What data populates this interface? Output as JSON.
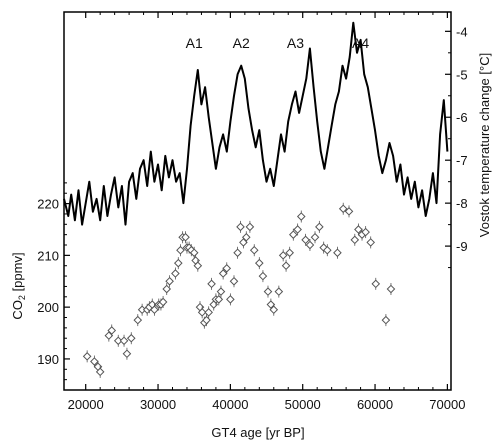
{
  "chart_data": {
    "type": "line",
    "xlabel": "GT4 age [yr BP]",
    "xlim": [
      17000,
      70500
    ],
    "xticks": [
      20000,
      30000,
      40000,
      50000,
      60000,
      70000
    ],
    "xtick_labels": [
      "20000",
      "30000",
      "40000",
      "50000",
      "60000",
      "70000"
    ],
    "y_left": {
      "label": "CO2 [ppmv]",
      "label_main": "CO",
      "label_sub": "2",
      "label_unit": " [ppmv]",
      "ylim": [
        184,
        257
      ],
      "ticks": [
        190,
        200,
        210,
        220
      ],
      "tick_labels": [
        "190",
        "200",
        "210",
        "220"
      ]
    },
    "y_right": {
      "label": "Vostok temperature change [°C]",
      "ylim": [
        -12.35,
        -3.55
      ],
      "ticks": [
        -4,
        -5,
        -6,
        -7,
        -8,
        -9
      ],
      "tick_labels": [
        "-4",
        "-5",
        "-6",
        "-7",
        "-8",
        "-9"
      ]
    },
    "annotations": [
      {
        "text": "A1",
        "x": 35000
      },
      {
        "text": "A2",
        "x": 41500
      },
      {
        "text": "A3",
        "x": 49000
      },
      {
        "text": "A4",
        "x": 58000
      }
    ],
    "grid": false,
    "series": [
      {
        "axis": "right",
        "style": "line",
        "color": "#000000",
        "x": [
          17000,
          17600,
          18000,
          18500,
          19000,
          19500,
          20000,
          20500,
          21000,
          21500,
          22000,
          22500,
          23000,
          23500,
          24000,
          24500,
          25000,
          25500,
          26000,
          26500,
          27000,
          27500,
          28000,
          28500,
          29000,
          29500,
          30000,
          30500,
          31000,
          31500,
          32000,
          32500,
          33000,
          33500,
          34000,
          34500,
          35000,
          35500,
          36000,
          36500,
          37000,
          37500,
          38000,
          38500,
          39000,
          39500,
          40000,
          40500,
          41000,
          41500,
          42000,
          42500,
          43000,
          43500,
          44000,
          44500,
          45000,
          45500,
          46000,
          46500,
          47000,
          47500,
          48000,
          48500,
          49000,
          49500,
          50000,
          50500,
          51000,
          51500,
          52000,
          52500,
          53000,
          53500,
          54000,
          54500,
          55000,
          55500,
          56000,
          56500,
          57000,
          57500,
          58000,
          58500,
          59000,
          59500,
          60000,
          60500,
          61000,
          61500,
          62000,
          62500,
          63000,
          63500,
          64000,
          64500,
          65000,
          65500,
          66000,
          66500,
          67000,
          67500,
          68000,
          68500,
          69000,
          69500,
          70000
        ],
        "y": [
          -7.9,
          -8.3,
          -7.8,
          -8.4,
          -7.7,
          -8.5,
          -8.0,
          -7.5,
          -8.2,
          -7.9,
          -8.4,
          -7.6,
          -8.3,
          -7.8,
          -7.4,
          -8.1,
          -7.6,
          -8.5,
          -7.5,
          -7.3,
          -7.9,
          -7.2,
          -7.0,
          -7.6,
          -6.8,
          -7.5,
          -7.1,
          -7.7,
          -6.9,
          -7.4,
          -7.0,
          -7.5,
          -7.3,
          -8.0,
          -7.2,
          -6.2,
          -5.5,
          -4.9,
          -5.7,
          -5.3,
          -6.0,
          -6.6,
          -7.2,
          -6.7,
          -6.4,
          -6.8,
          -6.1,
          -5.5,
          -5.0,
          -4.8,
          -5.1,
          -5.8,
          -6.3,
          -6.7,
          -6.3,
          -7.0,
          -7.5,
          -7.2,
          -7.6,
          -7.0,
          -6.4,
          -6.8,
          -6.1,
          -5.7,
          -5.4,
          -5.9,
          -5.5,
          -5.1,
          -4.4,
          -5.3,
          -6.1,
          -6.8,
          -7.2,
          -6.7,
          -6.2,
          -5.7,
          -5.4,
          -4.8,
          -5.1,
          -4.6,
          -3.8,
          -4.5,
          -4.2,
          -5.0,
          -5.3,
          -5.8,
          -6.3,
          -6.9,
          -7.3,
          -7.0,
          -6.6,
          -6.9,
          -7.5,
          -7.1,
          -7.8,
          -7.4,
          -7.9,
          -7.5,
          -8.1,
          -7.7,
          -8.3,
          -7.9,
          -7.3,
          -8.0,
          -6.4,
          -5.6,
          -6.8
        ]
      },
      {
        "axis": "left",
        "style": "markers",
        "marker": "diamond",
        "color": "#555555",
        "x": [
          20200,
          21200,
          21700,
          22000,
          23200,
          23600,
          24500,
          25300,
          25700,
          26300,
          27200,
          27800,
          28500,
          28800,
          29200,
          29500,
          30100,
          30400,
          30700,
          31200,
          31600,
          32400,
          32800,
          33100,
          33400,
          33800,
          34000,
          34300,
          34600,
          35000,
          35200,
          35500,
          35800,
          36100,
          36400,
          36700,
          37000,
          37400,
          37700,
          38000,
          38400,
          38700,
          39000,
          39500,
          40000,
          40500,
          41000,
          41400,
          41800,
          42200,
          42700,
          43300,
          44000,
          44500,
          45200,
          45600,
          46000,
          46700,
          47300,
          47700,
          48200,
          48700,
          49300,
          49800,
          50400,
          51000,
          51700,
          52300,
          52900,
          53400,
          54800,
          55600,
          56400,
          57200,
          57700,
          58200,
          58700,
          59400,
          60100,
          61500,
          62200
        ],
        "y": [
          190.5,
          189.5,
          188.5,
          187.5,
          194.5,
          195.5,
          193.5,
          193.5,
          191.0,
          194.0,
          197.5,
          199.5,
          199.5,
          200.0,
          200.5,
          199.5,
          200.5,
          200.5,
          201.0,
          203.5,
          205.0,
          206.5,
          208.5,
          211.0,
          213.5,
          213.5,
          211.5,
          211.5,
          211.0,
          210.5,
          209.0,
          208.0,
          200.0,
          199.0,
          197.0,
          197.5,
          199.0,
          204.5,
          200.5,
          201.5,
          201.5,
          203.0,
          206.5,
          207.5,
          201.5,
          205.0,
          210.5,
          215.5,
          212.5,
          213.5,
          215.5,
          211.0,
          208.5,
          206.0,
          203.0,
          200.5,
          199.5,
          203.0,
          210.0,
          208.0,
          210.5,
          214.0,
          215.0,
          217.5,
          213.0,
          212.0,
          213.5,
          215.5,
          211.5,
          211.0,
          210.5,
          219.0,
          218.5,
          213.0,
          215.0,
          214.0,
          214.5,
          212.5,
          204.5,
          197.5,
          203.5
        ]
      }
    ]
  }
}
